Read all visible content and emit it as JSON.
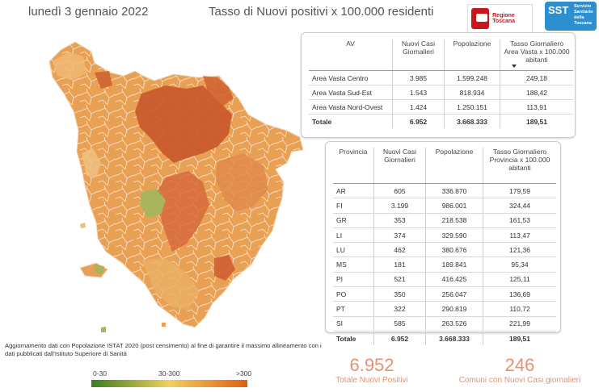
{
  "header": {
    "date": "lunedì 3 gennaio 2022",
    "title": "Tasso di Nuovi positivi x 100.000 residenti"
  },
  "logos": {
    "regione": "Regione Toscana",
    "sst_big": "SST",
    "sst_small": "Servizio Sanitario della Toscana"
  },
  "av_table": {
    "headers": [
      "AV",
      "Nuovi Casi Giornalieri",
      "Popolazione",
      "Tasso Giornaliero Area Vasta x 100.000 abitanti"
    ],
    "rows": [
      [
        "Area Vasta Centro",
        "3.985",
        "1.599.248",
        "249,18"
      ],
      [
        "Area Vasta Sud-Est",
        "1.543",
        "818.934",
        "188,42"
      ],
      [
        "Area Vasta Nord-Ovest",
        "1.424",
        "1.250.151",
        "113,91"
      ]
    ],
    "total": [
      "Totale",
      "6.952",
      "3.668.333",
      "189,51"
    ]
  },
  "prov_table": {
    "headers": [
      "Provincia",
      "Nuovi Casi Giornalieri",
      "Popolazione",
      "Tasso Giornaliero Provincia x 100.000 abitanti"
    ],
    "rows": [
      [
        "AR",
        "605",
        "336.870",
        "179,59"
      ],
      [
        "FI",
        "3.199",
        "986.001",
        "324,44"
      ],
      [
        "GR",
        "353",
        "218.538",
        "161,53"
      ],
      [
        "LI",
        "374",
        "329.590",
        "113,47"
      ],
      [
        "LU",
        "462",
        "380.676",
        "121,36"
      ],
      [
        "MS",
        "181",
        "189.841",
        "95,34"
      ],
      [
        "PI",
        "521",
        "416.425",
        "125,11"
      ],
      [
        "PO",
        "350",
        "256.047",
        "136,69"
      ],
      [
        "PT",
        "322",
        "290.819",
        "110,72"
      ],
      [
        "SI",
        "585",
        "263.526",
        "221,99"
      ]
    ],
    "total": [
      "Totale",
      "6.952",
      "3.668.333",
      "189,51"
    ]
  },
  "note": "Aggiornamento dati con Popolazione ISTAT 2020 (post censimento) al fine di garantire il massimo allineamento con i dati pubblicati dall'Istituto Superiore di Sanità",
  "legend": {
    "low": "0-30",
    "mid": "30-300",
    "high": ">300",
    "colors": [
      "#3a7d1e",
      "#f0d060",
      "#e06010"
    ]
  },
  "kpis": [
    {
      "value": "6.952",
      "label": "Totale Nuovi Positivi"
    },
    {
      "value": "246",
      "label": "Comuni con Nuovi Casi giornalieri"
    }
  ],
  "accent": "#e8906d"
}
